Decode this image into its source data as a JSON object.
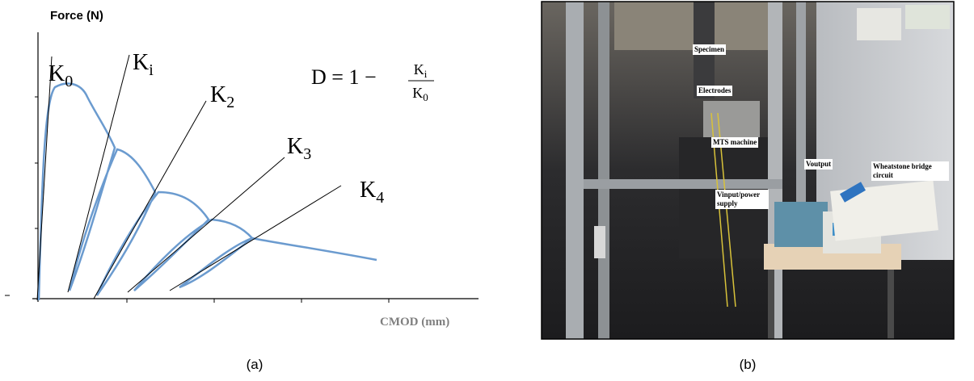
{
  "panel_a": {
    "y_axis_label": "Force (N)",
    "x_axis_label": "CMOD (mm)",
    "stiffness_labels": [
      {
        "symbol": "K",
        "subscript": "0"
      },
      {
        "symbol": "K",
        "subscript": "i"
      },
      {
        "symbol": "K",
        "subscript": "2"
      },
      {
        "symbol": "K",
        "subscript": "3"
      },
      {
        "symbol": "K",
        "subscript": "4"
      }
    ],
    "formula": {
      "lhs": "D = 1 −",
      "numerator": {
        "symbol": "K",
        "subscript": "i"
      },
      "denominator": {
        "symbol": "K",
        "subscript": "0"
      }
    },
    "caption": "(a)"
  },
  "panel_b": {
    "labels": [
      "Specimen",
      "Electrodes",
      "MTS machine",
      "Voutput",
      "Wheatstone bridge circuit",
      "Vinput/power supply"
    ],
    "caption": "(b)"
  }
}
